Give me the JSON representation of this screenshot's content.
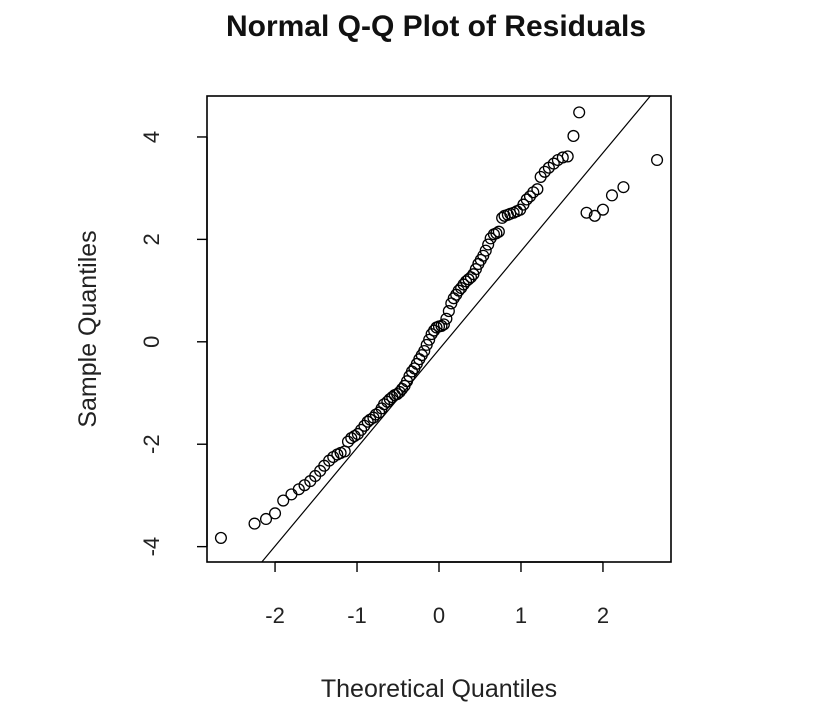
{
  "chart_data": {
    "type": "scatter",
    "title": "Normal Q-Q Plot of Residuals",
    "xlabel": "Theoretical Quantiles",
    "ylabel": "Sample Quantiles",
    "xlim": [
      -2.83,
      2.83
    ],
    "ylim": [
      -4.3,
      4.8
    ],
    "xticks": [
      -2,
      -1,
      0,
      1,
      2
    ],
    "yticks": [
      -4,
      -2,
      0,
      2,
      4
    ],
    "grid": false,
    "qq_line": {
      "slope": 1.92,
      "intercept": -0.15
    },
    "points": {
      "x": [
        -2.66,
        -2.25,
        -2.11,
        -2.0,
        -1.9,
        -1.8,
        -1.71,
        -1.64,
        -1.57,
        -1.51,
        -1.45,
        -1.4,
        -1.34,
        -1.29,
        -1.24,
        -1.2,
        -1.15,
        -1.11,
        -1.07,
        -1.03,
        -0.99,
        -0.95,
        -0.91,
        -0.87,
        -0.84,
        -0.8,
        -0.77,
        -0.73,
        -0.7,
        -0.67,
        -0.63,
        -0.6,
        -0.57,
        -0.54,
        -0.51,
        -0.48,
        -0.45,
        -0.42,
        -0.39,
        -0.36,
        -0.33,
        -0.3,
        -0.27,
        -0.24,
        -0.21,
        -0.18,
        -0.15,
        -0.12,
        -0.09,
        -0.06,
        -0.03,
        0.0,
        0.03,
        0.06,
        0.09,
        0.12,
        0.15,
        0.18,
        0.21,
        0.24,
        0.27,
        0.3,
        0.33,
        0.36,
        0.39,
        0.42,
        0.45,
        0.48,
        0.51,
        0.54,
        0.57,
        0.6,
        0.63,
        0.67,
        0.7,
        0.73,
        0.77,
        0.8,
        0.84,
        0.87,
        0.91,
        0.95,
        0.99,
        1.03,
        1.07,
        1.11,
        1.15,
        1.2,
        1.24,
        1.29,
        1.34,
        1.4,
        1.45,
        1.51,
        1.57,
        1.64,
        1.71,
        1.8,
        1.9,
        2.0,
        2.11,
        2.25,
        2.66
      ],
      "y": [
        -3.83,
        -3.55,
        -3.46,
        -3.35,
        -3.1,
        -2.98,
        -2.88,
        -2.8,
        -2.72,
        -2.62,
        -2.52,
        -2.42,
        -2.32,
        -2.25,
        -2.2,
        -2.17,
        -2.14,
        -1.95,
        -1.88,
        -1.84,
        -1.8,
        -1.72,
        -1.64,
        -1.56,
        -1.52,
        -1.48,
        -1.42,
        -1.38,
        -1.3,
        -1.22,
        -1.17,
        -1.12,
        -1.08,
        -1.04,
        -1.02,
        -0.98,
        -0.92,
        -0.86,
        -0.77,
        -0.67,
        -0.58,
        -0.52,
        -0.43,
        -0.34,
        -0.26,
        -0.18,
        -0.06,
        0.04,
        0.15,
        0.22,
        0.28,
        0.3,
        0.31,
        0.34,
        0.45,
        0.6,
        0.75,
        0.85,
        0.92,
        1.0,
        1.05,
        1.12,
        1.18,
        1.22,
        1.26,
        1.32,
        1.42,
        1.52,
        1.6,
        1.68,
        1.78,
        1.9,
        2.02,
        2.1,
        2.12,
        2.15,
        2.42,
        2.46,
        2.48,
        2.5,
        2.52,
        2.55,
        2.58,
        2.68,
        2.78,
        2.84,
        2.92,
        2.98,
        3.22,
        3.32,
        3.4,
        3.48,
        3.55,
        3.6,
        3.62,
        4.02,
        4.48,
        2.52,
        2.46,
        2.58,
        2.86,
        3.02,
        3.55
      ],
      "note_unused": null
    }
  }
}
